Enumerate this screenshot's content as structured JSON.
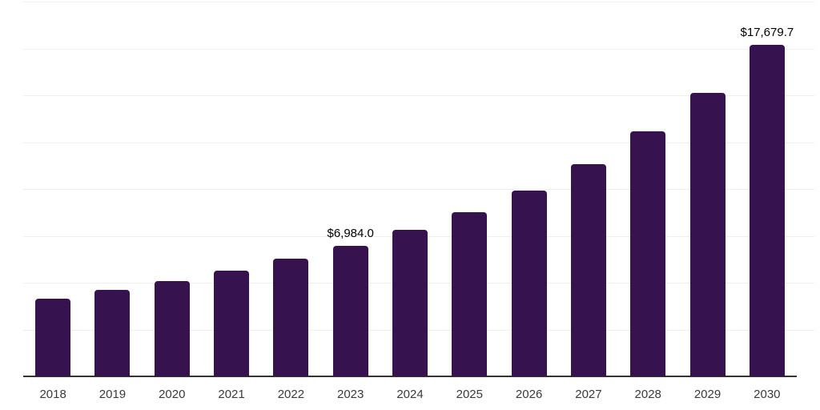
{
  "chart_data": {
    "type": "bar",
    "categories": [
      "2018",
      "2019",
      "2020",
      "2021",
      "2022",
      "2023",
      "2024",
      "2025",
      "2026",
      "2027",
      "2028",
      "2029",
      "2030"
    ],
    "values": [
      4150,
      4610,
      5080,
      5630,
      6270,
      6984.0,
      7800,
      8780,
      9920,
      11330,
      13070,
      15110,
      17679.7
    ],
    "labeled_points": [
      {
        "category": "2023",
        "label": "$6,984.0"
      },
      {
        "category": "2030",
        "label": "$17,679.7"
      }
    ],
    "title": "",
    "xlabel": "",
    "ylabel": "",
    "ylim": [
      0,
      20000
    ],
    "gridline_interval": 2500,
    "grid": "horizontal gridlines on, no y-axis tick labels",
    "legend": "none",
    "bar_color": "#36134f",
    "axis_line_color": "#333333",
    "gridline_color": "#eeeeee",
    "x_tick_label_color": "#3a3a3a",
    "data_label_color": "#000000"
  }
}
